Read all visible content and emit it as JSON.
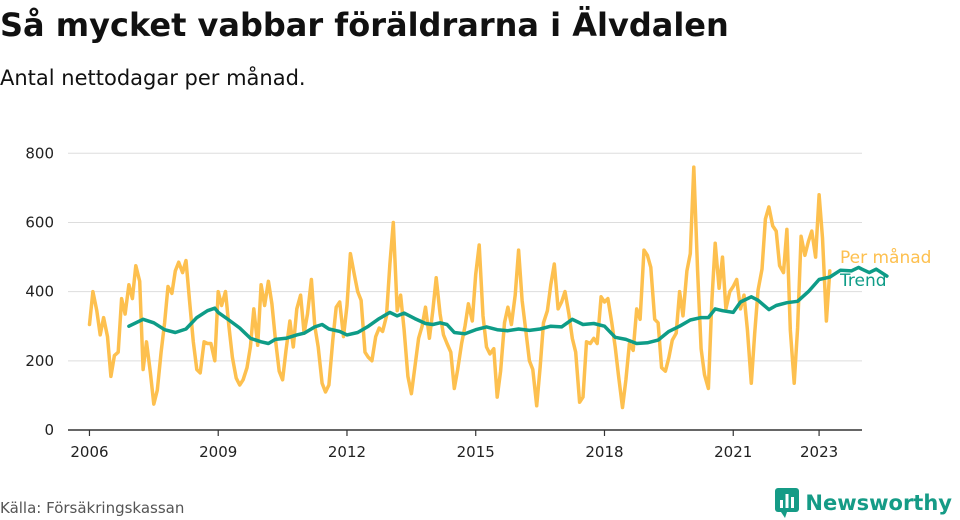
{
  "header": {
    "title": "Så mycket vabbar föräldrarna i Älvdalen",
    "subtitle": "Antal nettodagar per månad."
  },
  "footer": {
    "source": "Källa: Försäkringskassan",
    "brand": "Newsworthy",
    "brand_icon": "bar-chart-logo-icon"
  },
  "colors": {
    "per_manad": "#fdc04f",
    "trend": "#0e9c87",
    "grid": "#dddddd",
    "axis": "#333333",
    "brand": "#159b86"
  },
  "chart_data": {
    "type": "line",
    "title": "Så mycket vabbar föräldrarna i Älvdalen",
    "subtitle": "Antal nettodagar per månad.",
    "xlabel": "",
    "ylabel": "",
    "xlim": [
      2005.5,
      2024.0
    ],
    "ylim": [
      0,
      850
    ],
    "x_ticks": [
      2006,
      2009,
      2012,
      2015,
      2018,
      2021,
      2023
    ],
    "y_ticks": [
      0,
      200,
      400,
      600,
      800
    ],
    "grid": "horizontal",
    "legend": "end-of-line labels, right",
    "series": [
      {
        "name": "Per månad",
        "color": "#fdc04f",
        "points": [
          [
            2006.0,
            305
          ],
          [
            2006.08,
            400
          ],
          [
            2006.17,
            345
          ],
          [
            2006.25,
            275
          ],
          [
            2006.33,
            325
          ],
          [
            2006.42,
            270
          ],
          [
            2006.5,
            155
          ],
          [
            2006.58,
            215
          ],
          [
            2006.67,
            225
          ],
          [
            2006.75,
            380
          ],
          [
            2006.83,
            335
          ],
          [
            2006.92,
            420
          ],
          [
            2007.0,
            380
          ],
          [
            2007.08,
            475
          ],
          [
            2007.17,
            430
          ],
          [
            2007.25,
            175
          ],
          [
            2007.33,
            255
          ],
          [
            2007.42,
            165
          ],
          [
            2007.5,
            75
          ],
          [
            2007.58,
            115
          ],
          [
            2007.67,
            225
          ],
          [
            2007.75,
            310
          ],
          [
            2007.83,
            415
          ],
          [
            2007.92,
            395
          ],
          [
            2008.0,
            460
          ],
          [
            2008.08,
            485
          ],
          [
            2008.17,
            455
          ],
          [
            2008.25,
            490
          ],
          [
            2008.33,
            375
          ],
          [
            2008.42,
            255
          ],
          [
            2008.5,
            175
          ],
          [
            2008.58,
            165
          ],
          [
            2008.67,
            255
          ],
          [
            2008.75,
            250
          ],
          [
            2008.83,
            250
          ],
          [
            2008.92,
            200
          ],
          [
            2009.0,
            400
          ],
          [
            2009.08,
            360
          ],
          [
            2009.17,
            400
          ],
          [
            2009.25,
            300
          ],
          [
            2009.33,
            210
          ],
          [
            2009.42,
            150
          ],
          [
            2009.5,
            130
          ],
          [
            2009.58,
            145
          ],
          [
            2009.67,
            180
          ],
          [
            2009.75,
            240
          ],
          [
            2009.83,
            350
          ],
          [
            2009.92,
            245
          ],
          [
            2010.0,
            420
          ],
          [
            2010.08,
            360
          ],
          [
            2010.17,
            430
          ],
          [
            2010.25,
            365
          ],
          [
            2010.33,
            265
          ],
          [
            2010.42,
            170
          ],
          [
            2010.5,
            145
          ],
          [
            2010.58,
            230
          ],
          [
            2010.67,
            315
          ],
          [
            2010.75,
            240
          ],
          [
            2010.83,
            350
          ],
          [
            2010.92,
            390
          ],
          [
            2011.0,
            280
          ],
          [
            2011.08,
            335
          ],
          [
            2011.17,
            435
          ],
          [
            2011.25,
            300
          ],
          [
            2011.33,
            240
          ],
          [
            2011.42,
            135
          ],
          [
            2011.5,
            110
          ],
          [
            2011.58,
            130
          ],
          [
            2011.67,
            260
          ],
          [
            2011.75,
            355
          ],
          [
            2011.83,
            370
          ],
          [
            2011.92,
            270
          ],
          [
            2012.0,
            360
          ],
          [
            2012.08,
            510
          ],
          [
            2012.17,
            450
          ],
          [
            2012.25,
            400
          ],
          [
            2012.33,
            375
          ],
          [
            2012.42,
            225
          ],
          [
            2012.5,
            210
          ],
          [
            2012.58,
            200
          ],
          [
            2012.67,
            270
          ],
          [
            2012.75,
            295
          ],
          [
            2012.83,
            285
          ],
          [
            2012.92,
            330
          ],
          [
            2013.0,
            480
          ],
          [
            2013.08,
            600
          ],
          [
            2013.17,
            345
          ],
          [
            2013.25,
            390
          ],
          [
            2013.33,
            290
          ],
          [
            2013.42,
            155
          ],
          [
            2013.5,
            105
          ],
          [
            2013.58,
            180
          ],
          [
            2013.67,
            265
          ],
          [
            2013.75,
            300
          ],
          [
            2013.83,
            355
          ],
          [
            2013.92,
            265
          ],
          [
            2014.0,
            345
          ],
          [
            2014.08,
            440
          ],
          [
            2014.17,
            335
          ],
          [
            2014.25,
            275
          ],
          [
            2014.33,
            250
          ],
          [
            2014.42,
            225
          ],
          [
            2014.5,
            120
          ],
          [
            2014.58,
            175
          ],
          [
            2014.67,
            250
          ],
          [
            2014.75,
            300
          ],
          [
            2014.83,
            365
          ],
          [
            2014.92,
            315
          ],
          [
            2015.0,
            450
          ],
          [
            2015.08,
            535
          ],
          [
            2015.17,
            330
          ],
          [
            2015.25,
            240
          ],
          [
            2015.33,
            220
          ],
          [
            2015.42,
            235
          ],
          [
            2015.5,
            95
          ],
          [
            2015.58,
            170
          ],
          [
            2015.67,
            310
          ],
          [
            2015.75,
            355
          ],
          [
            2015.83,
            305
          ],
          [
            2015.92,
            390
          ],
          [
            2016.0,
            520
          ],
          [
            2016.08,
            375
          ],
          [
            2016.17,
            285
          ],
          [
            2016.25,
            200
          ],
          [
            2016.33,
            175
          ],
          [
            2016.42,
            70
          ],
          [
            2016.5,
            180
          ],
          [
            2016.58,
            310
          ],
          [
            2016.67,
            345
          ],
          [
            2016.75,
            420
          ],
          [
            2016.83,
            480
          ],
          [
            2016.92,
            350
          ],
          [
            2017.0,
            370
          ],
          [
            2017.08,
            400
          ],
          [
            2017.17,
            335
          ],
          [
            2017.25,
            265
          ],
          [
            2017.33,
            225
          ],
          [
            2017.42,
            80
          ],
          [
            2017.5,
            95
          ],
          [
            2017.58,
            255
          ],
          [
            2017.67,
            250
          ],
          [
            2017.75,
            265
          ],
          [
            2017.83,
            250
          ],
          [
            2017.92,
            385
          ],
          [
            2018.0,
            370
          ],
          [
            2018.08,
            380
          ],
          [
            2018.17,
            310
          ],
          [
            2018.25,
            240
          ],
          [
            2018.33,
            155
          ],
          [
            2018.42,
            65
          ],
          [
            2018.5,
            145
          ],
          [
            2018.58,
            250
          ],
          [
            2018.67,
            230
          ],
          [
            2018.75,
            350
          ],
          [
            2018.83,
            320
          ],
          [
            2018.92,
            520
          ],
          [
            2019.0,
            505
          ],
          [
            2019.08,
            470
          ],
          [
            2019.17,
            320
          ],
          [
            2019.25,
            310
          ],
          [
            2019.33,
            180
          ],
          [
            2019.42,
            170
          ],
          [
            2019.5,
            210
          ],
          [
            2019.58,
            260
          ],
          [
            2019.67,
            280
          ],
          [
            2019.75,
            400
          ],
          [
            2019.83,
            330
          ],
          [
            2019.92,
            460
          ],
          [
            2020.0,
            510
          ],
          [
            2020.08,
            760
          ],
          [
            2020.17,
            460
          ],
          [
            2020.25,
            235
          ],
          [
            2020.33,
            160
          ],
          [
            2020.42,
            120
          ],
          [
            2020.5,
            370
          ],
          [
            2020.58,
            540
          ],
          [
            2020.67,
            410
          ],
          [
            2020.75,
            500
          ],
          [
            2020.83,
            350
          ],
          [
            2020.92,
            400
          ],
          [
            2021.0,
            415
          ],
          [
            2021.08,
            435
          ],
          [
            2021.17,
            350
          ],
          [
            2021.25,
            390
          ],
          [
            2021.33,
            290
          ],
          [
            2021.42,
            135
          ],
          [
            2021.5,
            280
          ],
          [
            2021.58,
            405
          ],
          [
            2021.67,
            465
          ],
          [
            2021.75,
            610
          ],
          [
            2021.83,
            645
          ],
          [
            2021.92,
            590
          ],
          [
            2022.0,
            575
          ],
          [
            2022.08,
            475
          ],
          [
            2022.17,
            455
          ],
          [
            2022.25,
            580
          ],
          [
            2022.33,
            290
          ],
          [
            2022.42,
            135
          ],
          [
            2022.5,
            295
          ],
          [
            2022.58,
            560
          ],
          [
            2022.67,
            505
          ],
          [
            2022.75,
            545
          ],
          [
            2022.83,
            575
          ],
          [
            2022.92,
            500
          ],
          [
            2023.0,
            680
          ],
          [
            2023.08,
            555
          ],
          [
            2023.17,
            315
          ],
          [
            2023.25,
            460
          ]
        ]
      },
      {
        "name": "Trend",
        "color": "#0e9c87",
        "points": [
          [
            2006.92,
            300
          ],
          [
            2007.25,
            320
          ],
          [
            2007.5,
            310
          ],
          [
            2007.75,
            290
          ],
          [
            2008.0,
            282
          ],
          [
            2008.25,
            292
          ],
          [
            2008.5,
            325
          ],
          [
            2008.75,
            345
          ],
          [
            2008.92,
            352
          ],
          [
            2009.0,
            340
          ],
          [
            2009.25,
            318
          ],
          [
            2009.5,
            295
          ],
          [
            2009.75,
            265
          ],
          [
            2010.0,
            255
          ],
          [
            2010.17,
            250
          ],
          [
            2010.33,
            262
          ],
          [
            2010.58,
            265
          ],
          [
            2010.83,
            275
          ],
          [
            2011.0,
            280
          ],
          [
            2011.25,
            298
          ],
          [
            2011.42,
            305
          ],
          [
            2011.58,
            292
          ],
          [
            2011.83,
            285
          ],
          [
            2012.0,
            275
          ],
          [
            2012.25,
            282
          ],
          [
            2012.5,
            300
          ],
          [
            2012.75,
            322
          ],
          [
            2013.0,
            340
          ],
          [
            2013.17,
            330
          ],
          [
            2013.33,
            338
          ],
          [
            2013.58,
            322
          ],
          [
            2013.83,
            308
          ],
          [
            2014.0,
            305
          ],
          [
            2014.17,
            310
          ],
          [
            2014.33,
            305
          ],
          [
            2014.5,
            282
          ],
          [
            2014.75,
            278
          ],
          [
            2015.0,
            290
          ],
          [
            2015.25,
            298
          ],
          [
            2015.5,
            290
          ],
          [
            2015.75,
            287
          ],
          [
            2016.0,
            292
          ],
          [
            2016.25,
            288
          ],
          [
            2016.5,
            292
          ],
          [
            2016.75,
            300
          ],
          [
            2017.0,
            298
          ],
          [
            2017.25,
            320
          ],
          [
            2017.5,
            305
          ],
          [
            2017.75,
            308
          ],
          [
            2018.0,
            300
          ],
          [
            2018.25,
            268
          ],
          [
            2018.5,
            262
          ],
          [
            2018.75,
            250
          ],
          [
            2019.0,
            252
          ],
          [
            2019.25,
            260
          ],
          [
            2019.5,
            285
          ],
          [
            2019.75,
            300
          ],
          [
            2020.0,
            318
          ],
          [
            2020.25,
            325
          ],
          [
            2020.42,
            325
          ],
          [
            2020.58,
            350
          ],
          [
            2020.75,
            345
          ],
          [
            2021.0,
            340
          ],
          [
            2021.17,
            370
          ],
          [
            2021.42,
            385
          ],
          [
            2021.58,
            375
          ],
          [
            2021.83,
            348
          ],
          [
            2022.0,
            360
          ],
          [
            2022.25,
            368
          ],
          [
            2022.5,
            372
          ],
          [
            2022.75,
            400
          ],
          [
            2023.0,
            435
          ],
          [
            2023.25,
            442
          ],
          [
            2023.5,
            462
          ],
          [
            2023.75,
            460
          ],
          [
            2023.92,
            470
          ],
          [
            2024.0,
            465
          ],
          [
            2024.17,
            455
          ],
          [
            2024.33,
            465
          ],
          [
            2024.58,
            445
          ]
        ]
      }
    ]
  }
}
